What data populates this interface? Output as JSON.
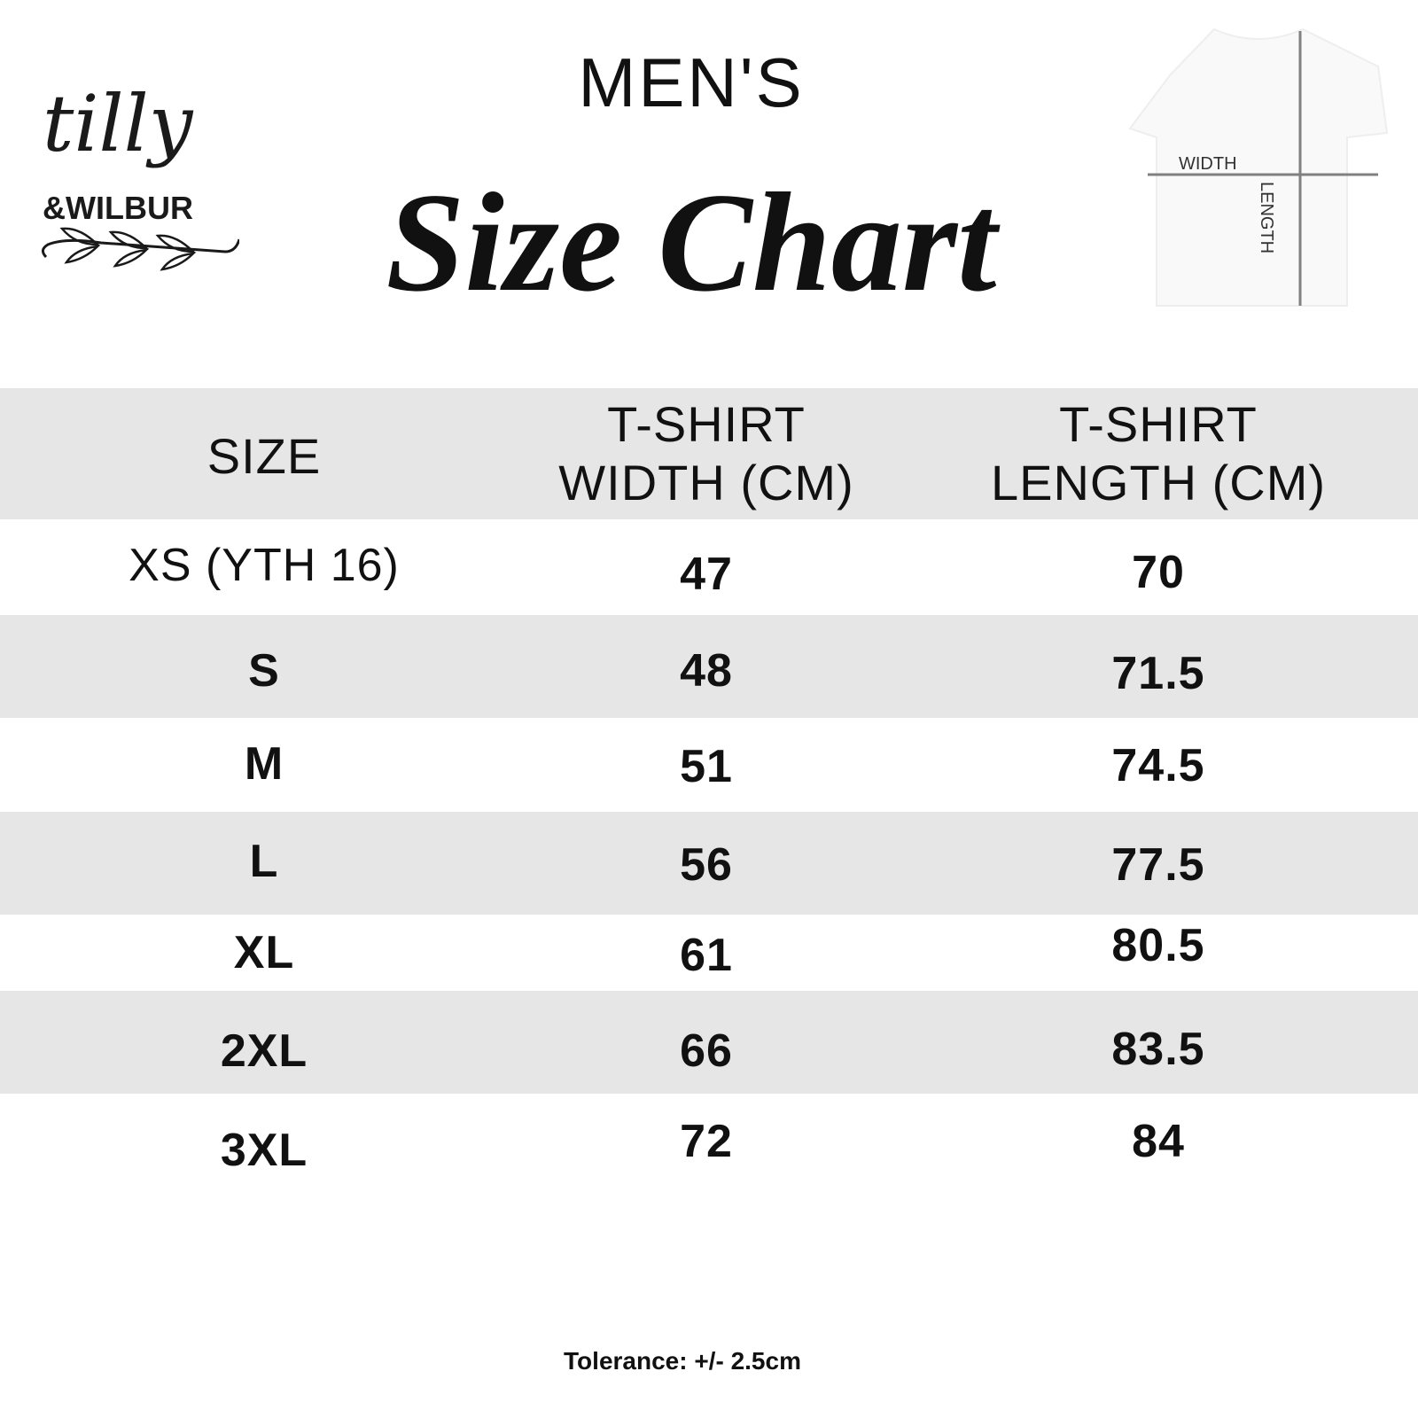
{
  "brand": {
    "logo_text": "tilly &WILBUR"
  },
  "header": {
    "subtitle": "MEN'S",
    "title": "Size Chart"
  },
  "diagram": {
    "width_label": "WIDTH",
    "length_label": "LENGTH",
    "line_color": "#808080"
  },
  "table": {
    "columns_lines": [
      [
        "SIZE"
      ],
      [
        "T-SHIRT",
        "WIDTH (CM)"
      ],
      [
        "T-SHIRT",
        "LENGTH (CM)"
      ]
    ],
    "rows": [
      [
        "XS (YTH 16)",
        "47",
        "70"
      ],
      [
        "S",
        "48",
        "71.5"
      ],
      [
        "M",
        "51",
        "74.5"
      ],
      [
        "L",
        "56",
        "77.5"
      ],
      [
        "XL",
        "61",
        "80.5"
      ],
      [
        "2XL",
        "66",
        "83.5"
      ],
      [
        "3XL",
        "72",
        "84"
      ]
    ],
    "stripe_color": "#e6e6e6"
  },
  "footer": {
    "tolerance": "Tolerance: +/- 2.5cm"
  }
}
